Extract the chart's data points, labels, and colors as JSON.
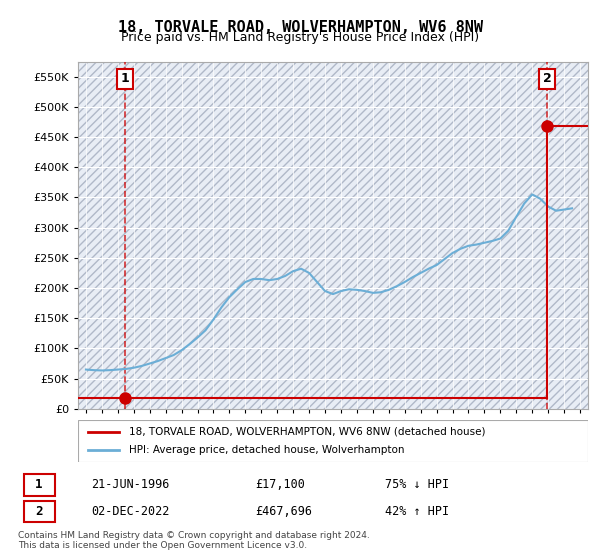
{
  "title": "18, TORVALE ROAD, WOLVERHAMPTON, WV6 8NW",
  "subtitle": "Price paid vs. HM Land Registry's House Price Index (HPI)",
  "legend_line1": "18, TORVALE ROAD, WOLVERHAMPTON, WV6 8NW (detached house)",
  "legend_line2": "HPI: Average price, detached house, Wolverhampton",
  "sale1_label": "1",
  "sale1_date": "21-JUN-1996",
  "sale1_price": "£17,100",
  "sale1_hpi": "75% ↓ HPI",
  "sale1_year": 1996.47,
  "sale1_value": 17100,
  "sale2_label": "2",
  "sale2_date": "02-DEC-2022",
  "sale2_price": "£467,696",
  "sale2_hpi": "42% ↑ HPI",
  "sale2_year": 2022.92,
  "sale2_value": 467696,
  "note": "Contains HM Land Registry data © Crown copyright and database right 2024.\nThis data is licensed under the Open Government Licence v3.0.",
  "hpi_color": "#6baed6",
  "sale_color": "#cc0000",
  "ylim_min": 0,
  "ylim_max": 575000,
  "xlim_min": 1993.5,
  "xlim_max": 2025.5,
  "background_hatch_color": "#d0d8e8",
  "grid_color": "#ffffff",
  "plot_bg": "#e8edf5"
}
